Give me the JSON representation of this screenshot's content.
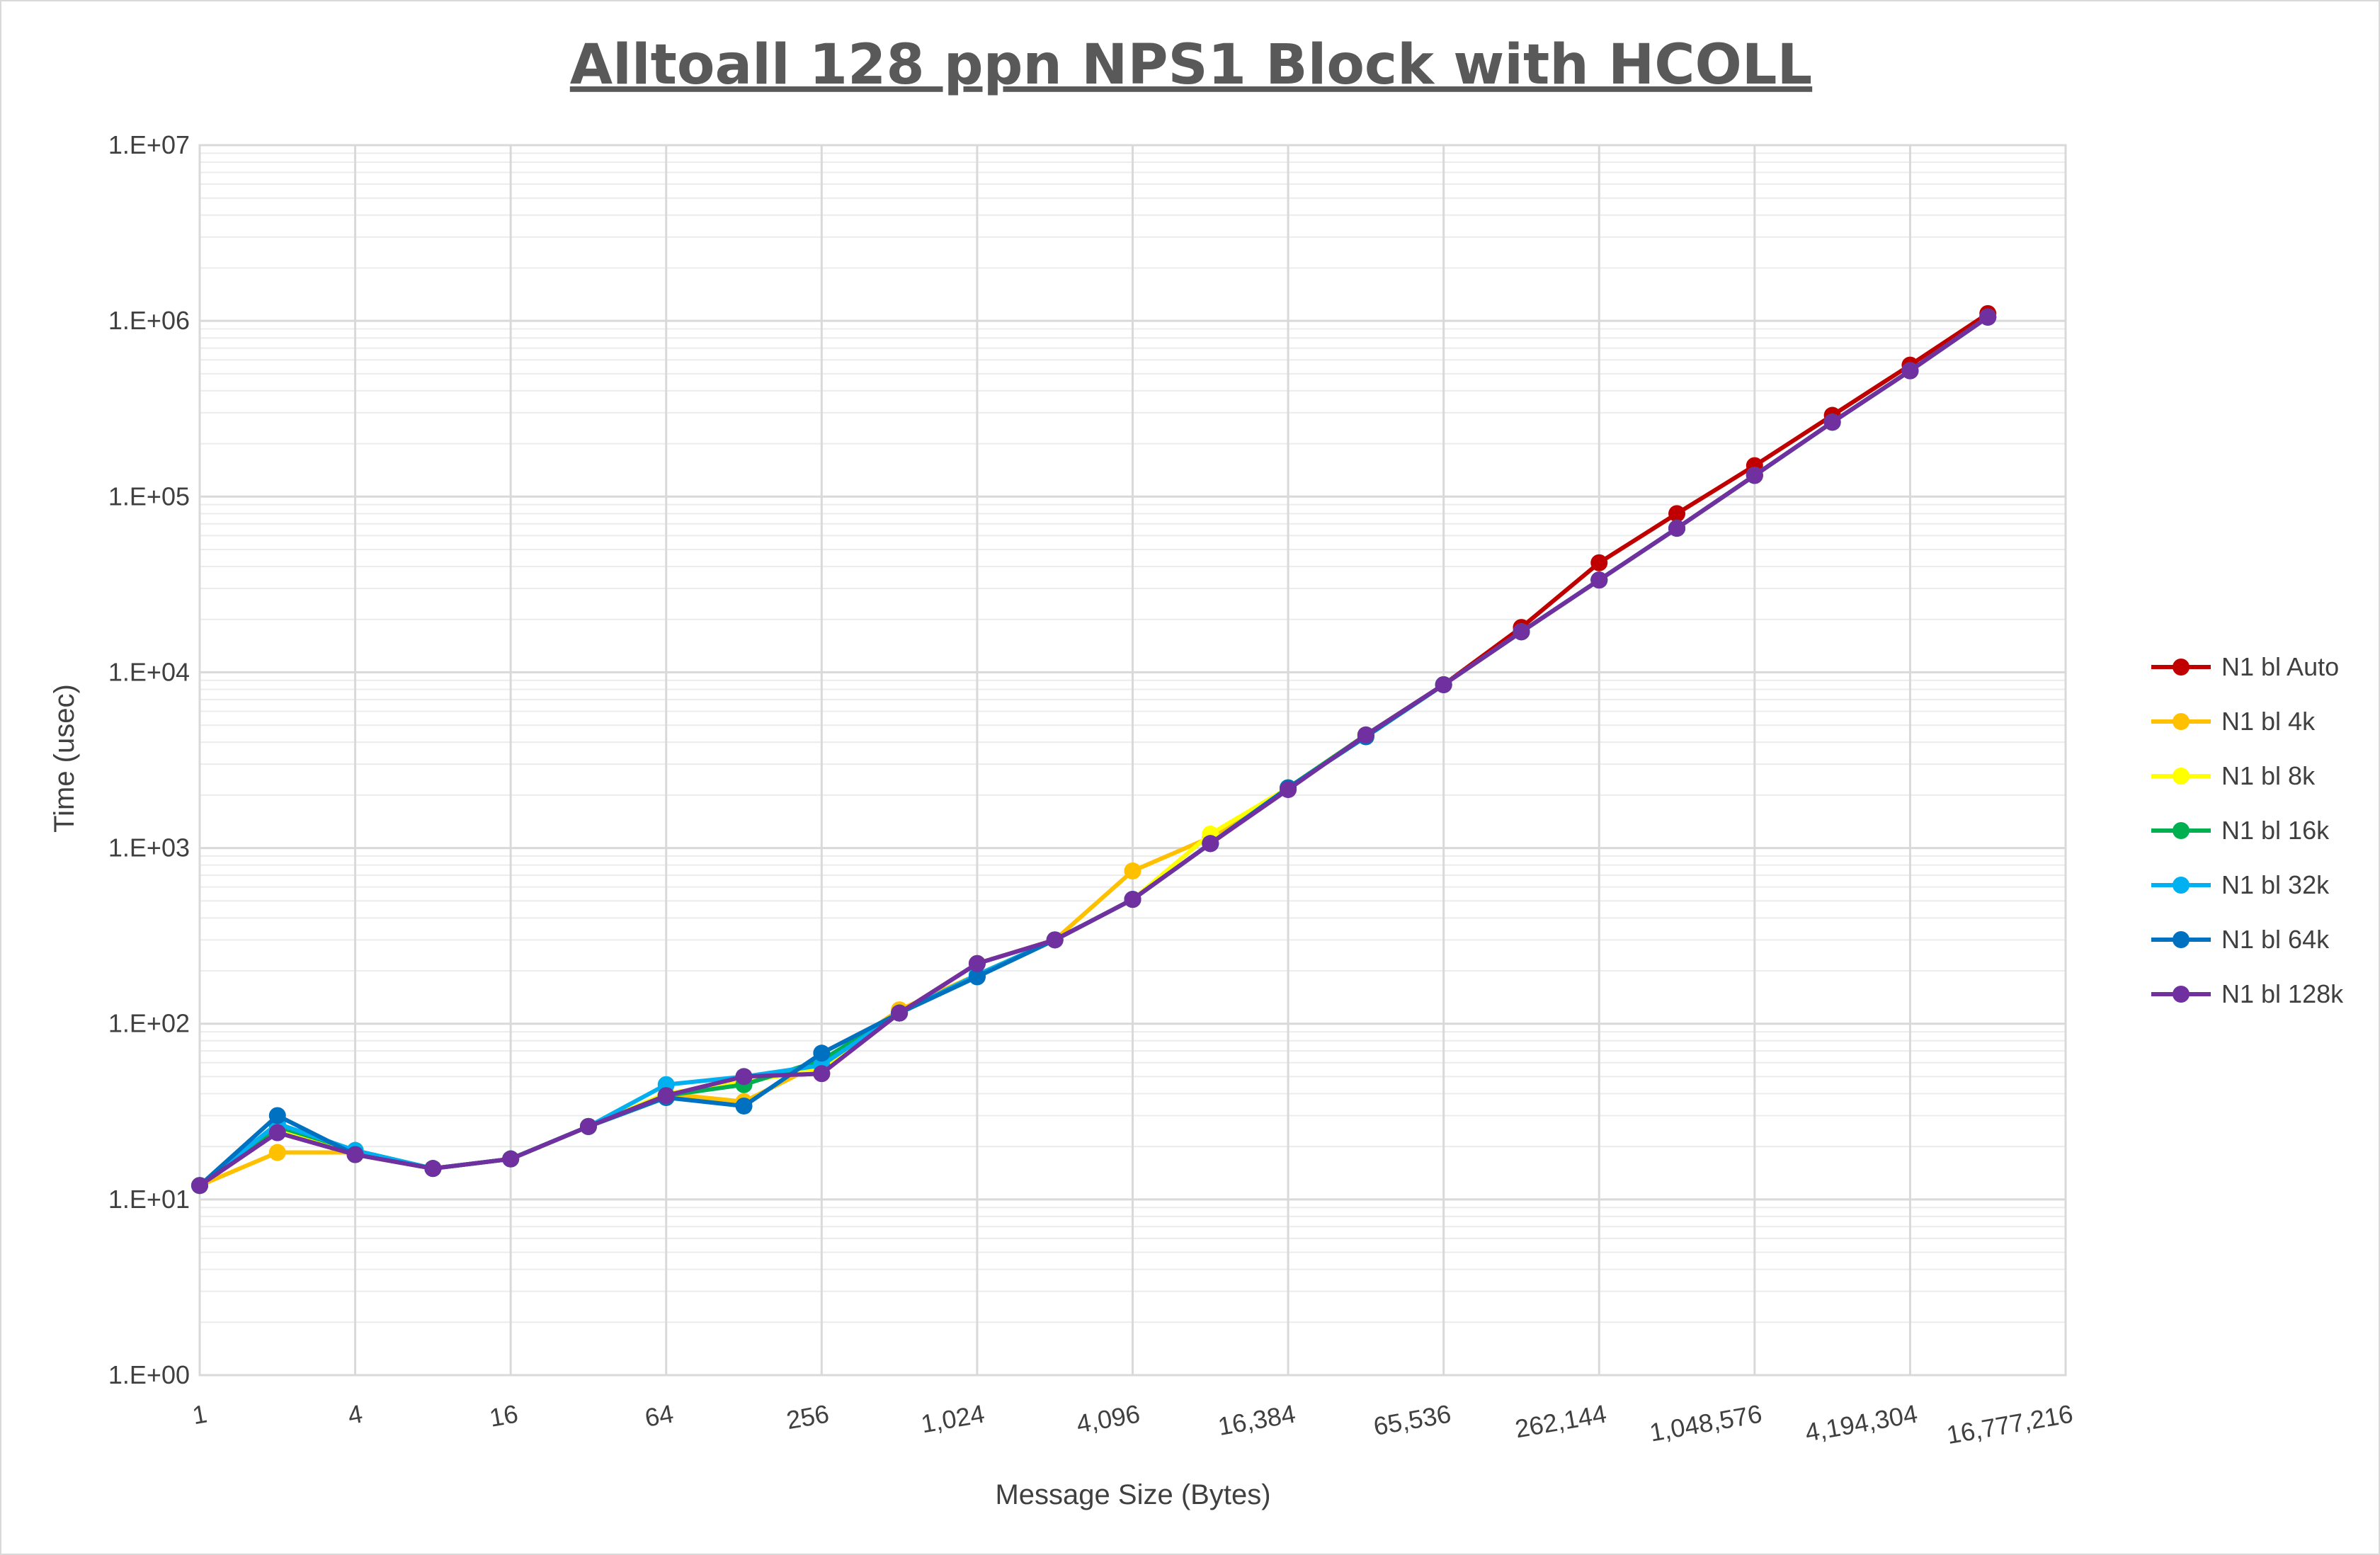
{
  "chart_data": {
    "type": "line",
    "title": "Alltoall 128 ppn NPS1 Block with HCOLL",
    "xlabel": "Message Size (Bytes)",
    "ylabel": "Time (usec)",
    "x_scale": "log2",
    "y_scale": "log10",
    "ylim": [
      1,
      10000000
    ],
    "grid": true,
    "legend_position": "right",
    "x_tick_labels": [
      "1",
      "4",
      "16",
      "64",
      "256",
      "1,024",
      "4,096",
      "16,384",
      "65,536",
      "262,144",
      "1,048,576",
      "4,194,304",
      "16,777,216"
    ],
    "y_tick_labels": [
      "1.E+00",
      "1.E+01",
      "1.E+02",
      "1.E+03",
      "1.E+04",
      "1.E+05",
      "1.E+06",
      "1.E+07"
    ],
    "x": [
      1,
      2,
      4,
      8,
      16,
      32,
      64,
      128,
      256,
      512,
      1024,
      2048,
      4096,
      8192,
      16384,
      32768,
      65536,
      131072,
      262144,
      524288,
      1048576,
      2097152,
      4194304,
      8388608
    ],
    "series": [
      {
        "name": "N1 bl Auto",
        "color": "#c00000",
        "values": [
          12,
          24,
          18,
          15,
          17,
          26,
          39,
          50,
          52,
          115,
          220,
          300,
          510,
          1060,
          2200,
          4400,
          8500,
          18000,
          42000,
          80000,
          150000,
          290000,
          560000,
          1100000
        ]
      },
      {
        "name": "N1 bl 4k",
        "color": "#ffc000",
        "values": [
          12,
          18.5,
          18.5,
          15,
          17,
          26,
          40,
          36,
          60,
          120,
          190,
          300,
          740,
          1150,
          2200,
          4400,
          8500,
          17000,
          33500,
          66000,
          132000,
          265000,
          520000,
          1050000
        ]
      },
      {
        "name": "N1 bl 8k",
        "color": "#ffff00",
        "values": [
          12,
          25,
          18,
          15,
          17,
          26,
          40,
          47,
          55,
          115,
          190,
          300,
          510,
          1200,
          2200,
          4400,
          8500,
          17000,
          33500,
          66000,
          132000,
          265000,
          520000,
          1050000
        ]
      },
      {
        "name": "N1 bl 16k",
        "color": "#00b050",
        "values": [
          12,
          26,
          19,
          15,
          17,
          26,
          39,
          45,
          62,
          115,
          185,
          300,
          510,
          1060,
          2200,
          4400,
          8500,
          17000,
          33500,
          66000,
          132000,
          265000,
          520000,
          1050000
        ]
      },
      {
        "name": "N1 bl 32k",
        "color": "#00b0f0",
        "values": [
          12,
          27,
          19,
          15,
          17,
          26,
          45,
          50,
          58,
          115,
          190,
          300,
          510,
          1060,
          2200,
          4300,
          8500,
          17000,
          33500,
          66000,
          132000,
          265000,
          520000,
          1050000
        ]
      },
      {
        "name": "N1 bl 64k",
        "color": "#0070c0",
        "values": [
          12,
          30,
          18,
          15,
          17,
          26,
          38,
          34,
          68,
          115,
          185,
          300,
          510,
          1060,
          2200,
          4300,
          8500,
          17000,
          33500,
          66000,
          132000,
          265000,
          520000,
          1050000
        ]
      },
      {
        "name": "N1 bl 128k",
        "color": "#7030a0",
        "values": [
          12,
          24,
          18,
          15,
          17,
          26,
          39,
          50,
          52,
          115,
          220,
          300,
          510,
          1060,
          2150,
          4400,
          8500,
          17000,
          33500,
          66000,
          132000,
          265000,
          520000,
          1050000
        ]
      }
    ]
  }
}
